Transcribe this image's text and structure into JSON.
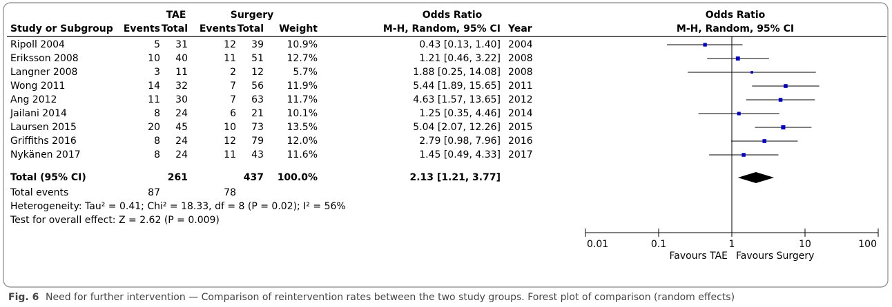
{
  "header": {
    "group1": "TAE",
    "group2": "Surgery",
    "effect": "Odds Ratio",
    "plot_title": "Odds Ratio",
    "plot_subtitle": "M-H, Random, 95% CI"
  },
  "columns": [
    "Study or Subgroup",
    "Events",
    "Total",
    "Events",
    "Total",
    "Weight",
    "M-H, Random, 95% CI",
    "Year"
  ],
  "studies": [
    {
      "name": "Ripoll 2004",
      "tae_events": 5,
      "tae_total": 31,
      "surgery_events": 12,
      "surgery_total": 39,
      "weight": {
        "value": 10.9,
        "label": "10.9%"
      },
      "or_ci": "0.43 [0.13, 1.40]",
      "or": 0.43,
      "ci": [
        0.13,
        1.4
      ],
      "year": 2004
    },
    {
      "name": "Eriksson 2008",
      "tae_events": 10,
      "tae_total": 40,
      "surgery_events": 11,
      "surgery_total": 51,
      "weight": {
        "value": 12.7,
        "label": "12.7%"
      },
      "or_ci": "1.21 [0.46, 3.22]",
      "or": 1.21,
      "ci": [
        0.46,
        3.22
      ],
      "year": 2008
    },
    {
      "name": "Langner 2008",
      "tae_events": 3,
      "tae_total": 11,
      "surgery_events": 2,
      "surgery_total": 12,
      "weight": {
        "value": 5.7,
        "label": "5.7%"
      },
      "or_ci": "1.88 [0.25, 14.08]",
      "or": 1.88,
      "ci": [
        0.25,
        14.08
      ],
      "year": 2008
    },
    {
      "name": "Wong 2011",
      "tae_events": 14,
      "tae_total": 32,
      "surgery_events": 7,
      "surgery_total": 56,
      "weight": {
        "value": 11.9,
        "label": "11.9%"
      },
      "or_ci": "5.44 [1.89, 15.65]",
      "or": 5.44,
      "ci": [
        1.89,
        15.65
      ],
      "year": 2011
    },
    {
      "name": "Ang 2012",
      "tae_events": 11,
      "tae_total": 30,
      "surgery_events": 7,
      "surgery_total": 63,
      "weight": {
        "value": 11.7,
        "label": "11.7%"
      },
      "or_ci": "4.63 [1.57, 13.65]",
      "or": 4.63,
      "ci": [
        1.57,
        13.65
      ],
      "year": 2012
    },
    {
      "name": "Jailani 2014",
      "tae_events": 8,
      "tae_total": 24,
      "surgery_events": 6,
      "surgery_total": 21,
      "weight": {
        "value": 10.1,
        "label": "10.1%"
      },
      "or_ci": "1.25 [0.35, 4.46]",
      "or": 1.25,
      "ci": [
        0.35,
        4.46
      ],
      "year": 2014
    },
    {
      "name": "Laursen 2015",
      "tae_events": 20,
      "tae_total": 45,
      "surgery_events": 10,
      "surgery_total": 73,
      "weight": {
        "value": 13.5,
        "label": "13.5%"
      },
      "or_ci": "5.04 [2.07, 12.26]",
      "or": 5.04,
      "ci": [
        2.07,
        12.26
      ],
      "year": 2015
    },
    {
      "name": "Griffiths 2016",
      "tae_events": 8,
      "tae_total": 24,
      "surgery_events": 12,
      "surgery_total": 79,
      "weight": {
        "value": 12.0,
        "label": "12.0%"
      },
      "or_ci": "2.79 [0.98, 7.96]",
      "or": 2.79,
      "ci": [
        0.98,
        7.96
      ],
      "year": 2016
    },
    {
      "name": "Nykänen 2017",
      "tae_events": 8,
      "tae_total": 24,
      "surgery_events": 11,
      "surgery_total": 43,
      "weight": {
        "value": 11.6,
        "label": "11.6%"
      },
      "or_ci": "1.45 [0.49, 4.33]",
      "or": 1.45,
      "ci": [
        0.49,
        4.33
      ],
      "year": 2017
    }
  ],
  "total": {
    "name": "Total (95% CI)",
    "tae_total": 261,
    "surgery_total": 437,
    "weight": {
      "value": 100,
      "label": "100.0%"
    },
    "or_ci": "2.13 [1.21, 3.77]",
    "or": 2.13,
    "ci": [
      1.21,
      3.77
    ]
  },
  "total_events": {
    "label": "Total events",
    "tae": 87,
    "surgery": 78
  },
  "heterogeneity": "Heterogeneity: Tau² = 0.41; Chi² = 18.33, df = 8 (P = 0.02); I² = 56%",
  "overall_effect": "Test for overall effect: Z = 2.62 (P = 0.009)",
  "axis": {
    "scale": "log",
    "xlim": [
      0.01,
      100
    ],
    "xticks": [
      0.01,
      0.1,
      1,
      10,
      100
    ],
    "left_label": "Favours TAE",
    "right_label": "Favours Surgery"
  },
  "caption": {
    "label": "Fig. 6",
    "text": "Need for further intervention — Comparison of reintervention rates between the two study groups. Forest plot of comparison (random effects)"
  }
}
